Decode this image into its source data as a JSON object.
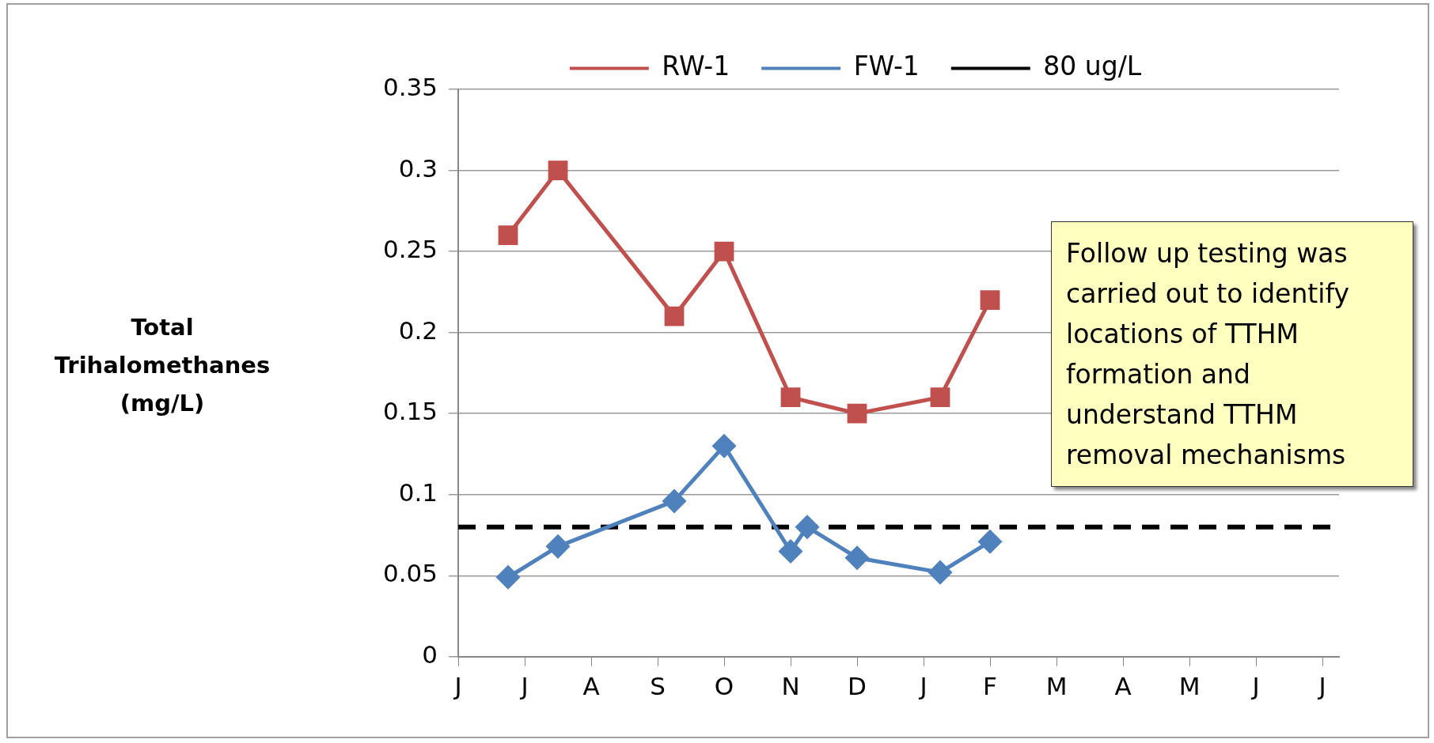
{
  "chart_data": {
    "type": "line",
    "ylabel": "Total Trihalomethanes (mg/L)",
    "categories": [
      "J",
      null,
      null,
      null,
      "J",
      null,
      null,
      null,
      "A",
      null,
      null,
      null,
      "S",
      null,
      null,
      null,
      "O",
      null,
      null,
      null,
      "N",
      null,
      null,
      null,
      "D",
      null,
      null,
      null,
      "J",
      null,
      null,
      null,
      "F",
      null,
      null,
      null,
      "M",
      null,
      null,
      null,
      "A",
      null,
      null,
      null,
      "M",
      null,
      null,
      null,
      "J",
      null,
      null,
      null,
      "J",
      null
    ],
    "ylim": [
      0,
      0.35
    ],
    "yticks": [
      0,
      0.05,
      0.1,
      0.15,
      0.2,
      0.25,
      0.3,
      0.35
    ],
    "series": [
      {
        "name": "RW-1",
        "color": "#c0504d",
        "marker": "square",
        "values": [
          null,
          null,
          null,
          0.26,
          null,
          null,
          0.3,
          null,
          null,
          null,
          null,
          null,
          null,
          0.21,
          null,
          null,
          0.25,
          null,
          null,
          null,
          0.16,
          null,
          null,
          null,
          0.15,
          null,
          null,
          null,
          null,
          0.16,
          null,
          null,
          0.22,
          null,
          null,
          null,
          null,
          null,
          null,
          null,
          null,
          null,
          null,
          null,
          null,
          null,
          null,
          null,
          null,
          null,
          null,
          null,
          null,
          null
        ]
      },
      {
        "name": "FW-1",
        "color": "#4f81bd",
        "marker": "diamond",
        "values": [
          null,
          null,
          null,
          0.049,
          null,
          null,
          0.068,
          null,
          null,
          null,
          null,
          null,
          null,
          0.096,
          null,
          null,
          0.13,
          null,
          null,
          null,
          0.065,
          0.08,
          null,
          null,
          0.061,
          null,
          null,
          null,
          null,
          0.052,
          null,
          null,
          0.071,
          null,
          null,
          null,
          null,
          null,
          null,
          null,
          null,
          null,
          null,
          null,
          null,
          null,
          null,
          null,
          null,
          null,
          null,
          null,
          null,
          null
        ]
      }
    ],
    "ref_lines": [
      {
        "axis": "y",
        "value": 0.08,
        "label": "80 ug/L",
        "color": "#000000",
        "line_style": "dashed"
      }
    ],
    "annotations": [
      "Follow up testing was carried out to identify locations of TTHM formation and understand TTHM removal mechanisms"
    ],
    "grid": "y",
    "legend": "top",
    "line_style": "solid"
  }
}
